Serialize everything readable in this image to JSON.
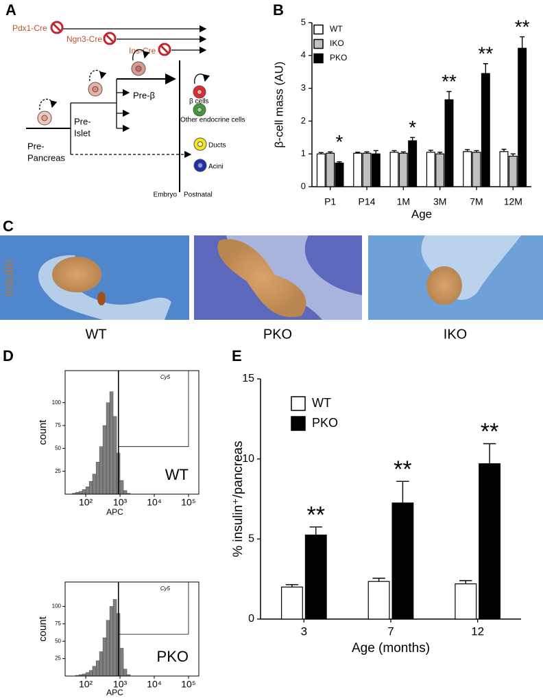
{
  "panels": [
    "A",
    "B",
    "C",
    "D",
    "E"
  ],
  "diagram": {
    "cre_lines": [
      "Pdx1-Cre",
      "Ngn3-Cre",
      "Ins-Cre"
    ],
    "stages": {
      "pancreas": [
        "Pre-",
        "Pancreas"
      ],
      "islet": [
        "Pre-",
        "Islet"
      ],
      "beta": "Pre-β"
    },
    "fates": [
      "β cells",
      "Other endocrine cells",
      "Ducts",
      "Acini"
    ],
    "periods": [
      "Embryo",
      "Postnatal"
    ]
  },
  "micrographs": {
    "stain": "insulin",
    "labels": [
      "WT",
      "PKO",
      "IKO"
    ]
  },
  "chart_data": [
    {
      "type": "bar",
      "ylabel": "β-cell mass (AU)",
      "xlabel": "Age",
      "categories": [
        "P1",
        "P14",
        "1M",
        "3M",
        "7M",
        "12M"
      ],
      "series": [
        {
          "name": "WT",
          "color": "#ffffff",
          "values": [
            1.0,
            1.02,
            1.05,
            1.05,
            1.07,
            1.07
          ],
          "errors": [
            0.04,
            0.03,
            0.05,
            0.06,
            0.06,
            0.07
          ]
        },
        {
          "name": "IKO",
          "color": "#c0c0c0",
          "values": [
            1.02,
            1.02,
            1.02,
            1.0,
            1.05,
            0.93
          ],
          "errors": [
            0.04,
            0.04,
            0.04,
            0.05,
            0.05,
            0.07
          ]
        },
        {
          "name": "PKO",
          "color": "#000000",
          "values": [
            0.72,
            1.0,
            1.4,
            2.65,
            3.45,
            4.22
          ],
          "errors": [
            0.04,
            0.1,
            0.1,
            0.25,
            0.3,
            0.35
          ]
        }
      ],
      "significance": [
        "*",
        null,
        "*",
        "**",
        "**",
        "**"
      ],
      "ylim": [
        0,
        5
      ],
      "yticks": [
        0,
        1,
        2,
        3,
        4,
        5
      ]
    },
    {
      "type": "bar",
      "ylabel": "% insulin⁺/pancreas",
      "xlabel": "Age (months)",
      "categories": [
        "3",
        "7",
        "12"
      ],
      "series": [
        {
          "name": "WT",
          "color": "#ffffff",
          "values": [
            2.0,
            2.35,
            2.2
          ],
          "errors": [
            0.15,
            0.2,
            0.2
          ]
        },
        {
          "name": "PKO",
          "color": "#000000",
          "values": [
            5.25,
            7.25,
            9.7
          ],
          "errors": [
            0.5,
            1.35,
            1.25
          ]
        }
      ],
      "significance": [
        "**",
        "**",
        "**"
      ],
      "ylim": [
        0,
        15
      ],
      "yticks": [
        0,
        5,
        10,
        15
      ]
    },
    {
      "type": "histogram",
      "label": "WT",
      "xlabel": "APC",
      "ylabel": "count",
      "log_x": true,
      "bins": [
        40,
        50,
        63,
        79,
        100,
        126,
        158,
        200,
        251,
        316,
        398,
        501,
        631,
        794,
        1000,
        1259,
        1585,
        1995
      ],
      "counts": [
        1,
        2,
        3,
        5,
        8,
        14,
        22,
        35,
        52,
        75,
        100,
        112,
        85,
        45,
        15,
        4,
        1
      ],
      "color": "#808080",
      "gate": {
        "x": [
          900,
          100000
        ],
        "y": 52,
        "label": "Cy5"
      },
      "xlim": [
        25,
        200000
      ],
      "xticks": [
        {
          "value": 100,
          "label": "10²"
        },
        {
          "value": 1000,
          "label": "10³"
        },
        {
          "value": 10000,
          "label": "10⁴"
        },
        {
          "value": 100000,
          "label": "10⁵"
        }
      ],
      "ylim": [
        0,
        135
      ],
      "yticks": [
        25,
        50,
        75,
        100
      ]
    },
    {
      "type": "histogram",
      "label": "PKO",
      "xlabel": "APC",
      "ylabel": "count",
      "log_x": true,
      "bins": [
        40,
        50,
        63,
        79,
        100,
        126,
        158,
        200,
        251,
        316,
        398,
        501,
        631,
        794,
        1000,
        1259,
        1585,
        1995
      ],
      "counts": [
        0,
        1,
        2,
        3,
        5,
        8,
        14,
        22,
        35,
        55,
        80,
        100,
        110,
        90,
        40,
        10,
        2
      ],
      "color": "#808080",
      "gate": {
        "x": [
          900,
          100000
        ],
        "y": 60,
        "label": "Cy5"
      },
      "xlim": [
        25,
        200000
      ],
      "xticks": [
        {
          "value": 100,
          "label": "10²"
        },
        {
          "value": 1000,
          "label": "10³"
        },
        {
          "value": 10000,
          "label": "10⁴"
        },
        {
          "value": 100000,
          "label": "10⁵"
        }
      ],
      "ylim": [
        0,
        135
      ],
      "yticks": [
        25,
        50,
        75,
        100
      ]
    }
  ]
}
